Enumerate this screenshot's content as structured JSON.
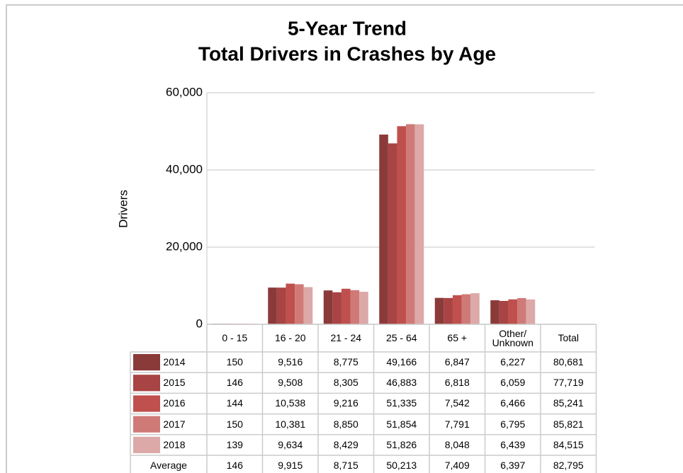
{
  "chart_data": {
    "type": "bar",
    "title": "5-Year Trend",
    "subtitle": "Total Drivers in Crashes by Age",
    "y_label": "Drivers",
    "categories": [
      "0 - 15",
      "16 - 20",
      "21 - 24",
      "25 - 64",
      "65 +",
      "Other/ Unknown"
    ],
    "total_header": "Total",
    "ylim": [
      0,
      60000
    ],
    "yticks": [
      0,
      {
        "value": 20000,
        "label": "20,000"
      },
      {
        "value": 40000,
        "label": "40,000"
      },
      {
        "value": 60000,
        "label": "60,000"
      }
    ],
    "grid": true,
    "series": [
      {
        "name": "2014",
        "color": "#8b3a3a",
        "values": [
          150,
          9516,
          8775,
          49166,
          6847,
          6227
        ],
        "value_labels": [
          "150",
          "9,516",
          "8,775",
          "49,166",
          "6,847",
          "6,227"
        ],
        "total": 80681,
        "total_label": "80,681"
      },
      {
        "name": "2015",
        "color": "#a84444",
        "values": [
          146,
          9508,
          8305,
          46883,
          6818,
          6059
        ],
        "value_labels": [
          "146",
          "9,508",
          "8,305",
          "46,883",
          "6,818",
          "6,059"
        ],
        "total": 77719,
        "total_label": "77,719"
      },
      {
        "name": "2016",
        "color": "#c0504d",
        "values": [
          144,
          10538,
          9216,
          51335,
          7542,
          6466
        ],
        "value_labels": [
          "144",
          "10,538",
          "9,216",
          "51,335",
          "7,542",
          "6,466"
        ],
        "total": 85241,
        "total_label": "85,241"
      },
      {
        "name": "2017",
        "color": "#d07a78",
        "values": [
          150,
          10381,
          8850,
          51854,
          7791,
          6795
        ],
        "value_labels": [
          "150",
          "10,381",
          "8,850",
          "51,854",
          "7,791",
          "6,795"
        ],
        "total": 85821,
        "total_label": "85,821"
      },
      {
        "name": "2018",
        "color": "#dca8a8",
        "values": [
          139,
          9634,
          8429,
          51826,
          8048,
          6439
        ],
        "value_labels": [
          "139",
          "9,634",
          "8,429",
          "51,826",
          "8,048",
          "6,439"
        ],
        "total": 84515,
        "total_label": "84,515"
      }
    ],
    "average": {
      "name": "Average",
      "values": [
        146,
        9915,
        8715,
        50213,
        7409,
        6397
      ],
      "value_labels": [
        "146",
        "9,915",
        "8,715",
        "50,213",
        "7,409",
        "6,397"
      ],
      "total": 82795,
      "total_label": "82,795"
    }
  }
}
